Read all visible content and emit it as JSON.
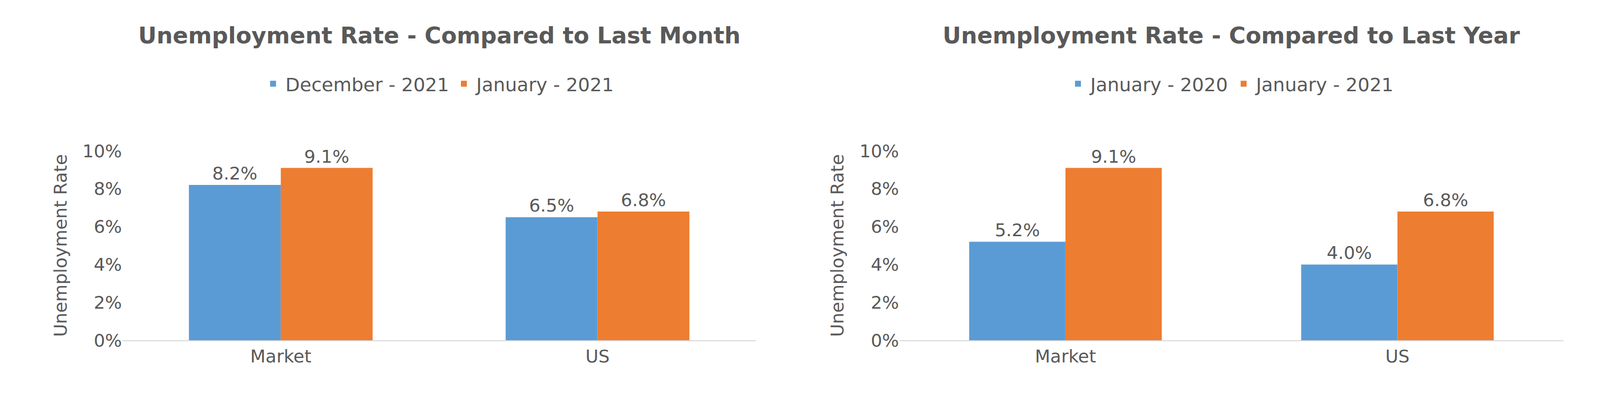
{
  "chart_data": [
    {
      "type": "bar",
      "title": "Unemployment Rate - Compared to Last Month",
      "y_label": "Unemployment Rate",
      "categories": [
        "Market",
        "US"
      ],
      "series": [
        {
          "name": "December - 2021",
          "color": "#5B9BD5",
          "values": [
            8.2,
            6.5
          ],
          "value_labels": [
            "8.2%",
            "6.5%"
          ]
        },
        {
          "name": "January - 2021",
          "color": "#ED7D31",
          "values": [
            9.1,
            6.8
          ],
          "value_labels": [
            "9.1%",
            "6.8%"
          ]
        }
      ],
      "ylim": [
        0,
        10
      ],
      "yticks": [
        {
          "value": 0,
          "label": "0%"
        },
        {
          "value": 2,
          "label": "2%"
        },
        {
          "value": 4,
          "label": "4%"
        },
        {
          "value": 6,
          "label": "6%"
        },
        {
          "value": 8,
          "label": "8%"
        },
        {
          "value": 10,
          "label": "10%"
        }
      ],
      "grid": false,
      "legend": "top",
      "data_labels": true
    },
    {
      "type": "bar",
      "title": "Unemployment Rate - Compared to Last Year",
      "y_label": "Unemployment Rate",
      "categories": [
        "Market",
        "US"
      ],
      "series": [
        {
          "name": "January - 2020",
          "color": "#5B9BD5",
          "values": [
            5.2,
            4.0
          ],
          "value_labels": [
            "5.2%",
            "4.0%"
          ]
        },
        {
          "name": "January - 2021",
          "color": "#ED7D31",
          "values": [
            9.1,
            6.8
          ],
          "value_labels": [
            "9.1%",
            "6.8%"
          ]
        }
      ],
      "ylim": [
        0,
        10
      ],
      "yticks": [
        {
          "value": 0,
          "label": "0%"
        },
        {
          "value": 2,
          "label": "2%"
        },
        {
          "value": 4,
          "label": "4%"
        },
        {
          "value": 6,
          "label": "6%"
        },
        {
          "value": 8,
          "label": "8%"
        },
        {
          "value": 10,
          "label": "10%"
        }
      ],
      "grid": false,
      "legend": "top",
      "data_labels": true
    }
  ]
}
